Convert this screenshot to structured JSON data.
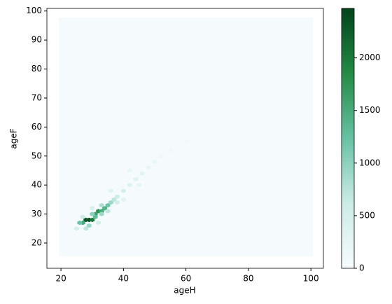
{
  "chart_data": {
    "type": "hexbin",
    "x_label": "ageH",
    "y_label": "ageF",
    "x": [
      29,
      28,
      30,
      27,
      26,
      31,
      32,
      33,
      34,
      35,
      31,
      29,
      28,
      30,
      33,
      36,
      37,
      38,
      40,
      42,
      44,
      46,
      48,
      50,
      33,
      35,
      38,
      30,
      27,
      40,
      45,
      52,
      55,
      60,
      36,
      42,
      25,
      32
    ],
    "y": [
      28,
      28,
      28,
      27,
      27,
      30,
      31,
      31,
      32,
      33,
      29,
      26,
      25,
      30,
      30,
      34,
      35,
      36,
      38,
      40,
      42,
      44,
      46,
      48,
      33,
      31,
      34,
      32,
      29,
      35,
      40,
      50,
      52,
      55,
      38,
      45,
      25,
      27
    ],
    "counts": [
      2450,
      2300,
      2000,
      1500,
      1200,
      1600,
      1800,
      1500,
      1400,
      1200,
      1300,
      900,
      700,
      1000,
      900,
      900,
      700,
      600,
      500,
      400,
      350,
      300,
      250,
      200,
      800,
      700,
      500,
      500,
      600,
      350,
      250,
      150,
      120,
      80,
      300,
      200,
      500,
      500
    ],
    "colormap": [
      "#f7fcfd",
      "#ccece6",
      "#66c2a4",
      "#238b45",
      "#00441b"
    ],
    "xlim": [
      15.5,
      104
    ],
    "ylim": [
      11.3,
      100.9
    ],
    "clim": [
      0,
      2470
    ],
    "xticks": [
      20,
      40,
      60,
      80,
      100
    ],
    "yticks": [
      20,
      30,
      40,
      50,
      60,
      70,
      80,
      90,
      100
    ],
    "cticks": [
      0,
      500,
      1000,
      1500,
      2000
    ]
  }
}
